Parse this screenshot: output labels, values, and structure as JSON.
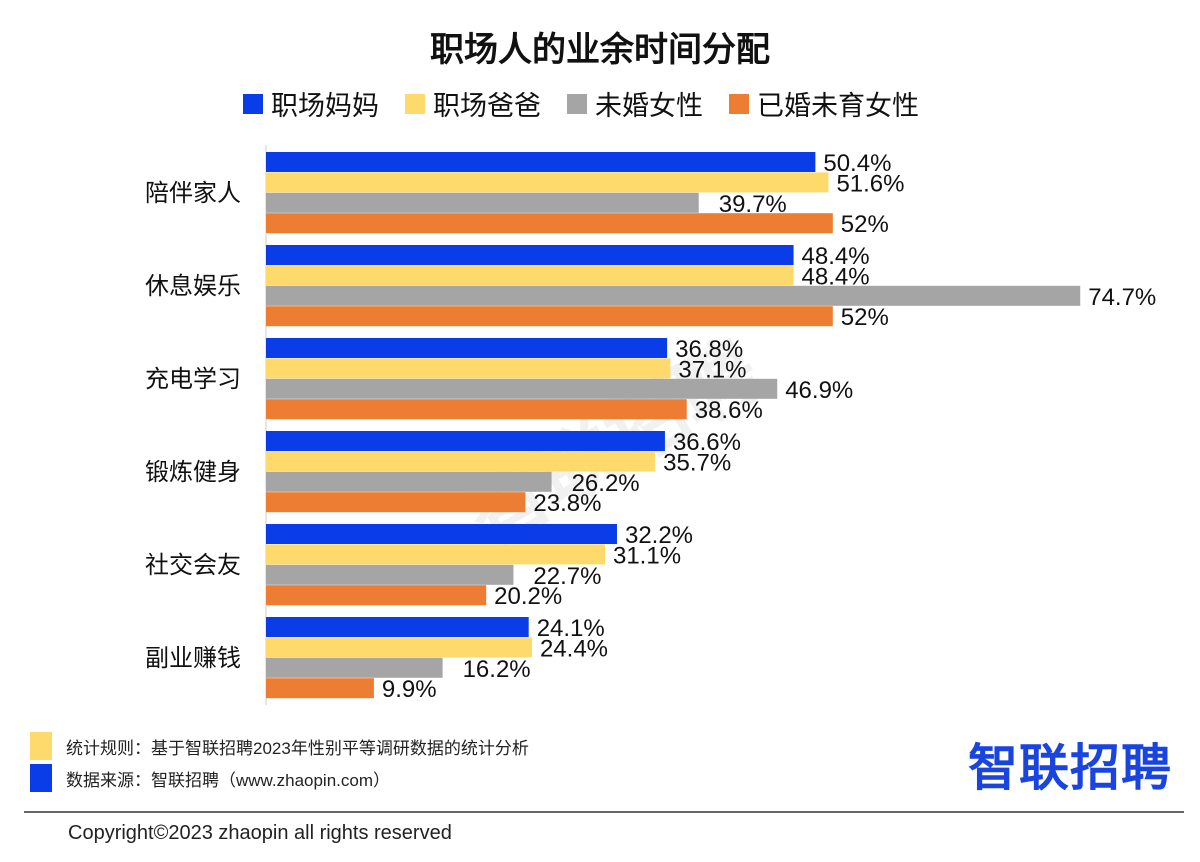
{
  "chart_data": {
    "type": "bar",
    "orientation": "horizontal",
    "title": "职场人的业余时间分配",
    "categories": [
      "陪伴家人",
      "休息娱乐",
      "充电学习",
      "锻炼健身",
      "社交会友",
      "副业赚钱"
    ],
    "series": [
      {
        "name": "职场妈妈",
        "color": "#0a3de8",
        "values": [
          50.4,
          48.4,
          36.8,
          36.6,
          32.2,
          24.1
        ],
        "labels": [
          "50.4%",
          "48.4%",
          "36.8%",
          "36.6%",
          "32.2%",
          "24.1%"
        ]
      },
      {
        "name": "职场爸爸",
        "color": "#fed96b",
        "values": [
          51.6,
          48.4,
          37.1,
          35.7,
          31.1,
          24.4
        ],
        "labels": [
          "51.6%",
          "48.4%",
          "37.1%",
          "35.7%",
          "31.1%",
          "24.4%"
        ]
      },
      {
        "name": "未婚女性",
        "color": "#a5a5a5",
        "values": [
          39.7,
          74.7,
          46.9,
          26.2,
          22.7,
          16.2
        ],
        "labels": [
          "39.7%",
          "74.7%",
          "46.9%",
          "26.2%",
          "22.7%",
          "16.2%"
        ]
      },
      {
        "name": "已婚未育女性",
        "color": "#ec7d32",
        "values": [
          52,
          52,
          38.6,
          23.8,
          20.2,
          9.9
        ],
        "labels": [
          "52%",
          "52%",
          "38.6%",
          "23.8%",
          "20.2%",
          "9.9%"
        ]
      }
    ],
    "xlabel": "",
    "ylabel": "",
    "xlim": [
      0,
      80
    ],
    "grid": false,
    "legend_position": "top"
  },
  "footer": {
    "rule_text": "统计规则：基于智联招聘2023年性别平等调研数据的统计分析",
    "source_text": "数据来源：智联招聘（www.zhaopin.com）",
    "rule_color": "#fed96b",
    "source_color": "#0a3de8",
    "copyright": "Copyright©2023 zhaopin all rights reserved"
  },
  "logo_text": "智联招聘",
  "watermark": "智联招聘"
}
